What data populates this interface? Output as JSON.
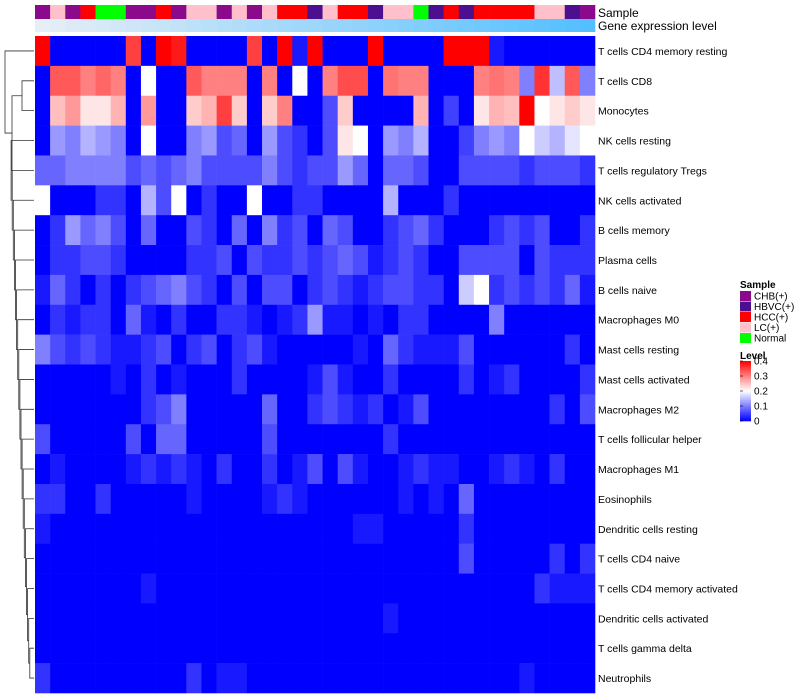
{
  "chart_data": {
    "type": "heatmap",
    "title": "",
    "annotation_tracks": [
      "Sample",
      "Gene expression level"
    ],
    "sample_palette": {
      "CHB(+)": "#8b0a8b",
      "HBVC(+)": "#4b0f8f",
      "HCC(+)": "#ff0000",
      "LC(+)": "#ffc0cb",
      "Normal": "#00ff00"
    },
    "sample_track": [
      "CHB(+)",
      "LC(+)",
      "CHB(+)",
      "HCC(+)",
      "Normal",
      "Normal",
      "CHB(+)",
      "CHB(+)",
      "HCC(+)",
      "CHB(+)",
      "LC(+)",
      "LC(+)",
      "CHB(+)",
      "LC(+)",
      "CHB(+)",
      "LC(+)",
      "HCC(+)",
      "HCC(+)",
      "HBVC(+)",
      "LC(+)",
      "HCC(+)",
      "HCC(+)",
      "HBVC(+)",
      "LC(+)",
      "LC(+)",
      "Normal",
      "HBVC(+)",
      "HCC(+)",
      "HBVC(+)",
      "HCC(+)",
      "HCC(+)",
      "HCC(+)",
      "HCC(+)",
      "LC(+)",
      "LC(+)",
      "HBVC(+)",
      "CHB(+)"
    ],
    "expression_track_ramp": [
      "#e6eef6",
      "#54bfff"
    ],
    "rows": [
      "T cells CD4 memory resting",
      "T cells CD8",
      "Monocytes",
      "NK cells resting",
      "T cells regulatory  Tregs",
      "NK cells activated",
      "B cells memory",
      "Plasma cells",
      "B cells naive",
      "Macrophages M0",
      "Mast cells resting",
      "Mast cells activated",
      "Macrophages M2",
      "T cells follicular helper",
      "Macrophages M1",
      "Eosinophils",
      "Dendritic cells resting",
      "T cells CD4 naive",
      "T cells CD4 memory activated",
      "Dendritic cells activated",
      "T cells gamma delta",
      "Neutrophils"
    ],
    "matrix": [
      [
        0.4,
        0.0,
        0.0,
        0.0,
        0.0,
        0.0,
        0.35,
        0.0,
        0.4,
        0.38,
        0.0,
        0.0,
        0.0,
        0.0,
        0.35,
        0.0,
        0.4,
        0.02,
        0.4,
        0.0,
        0.0,
        0.0,
        0.4,
        0.0,
        0.0,
        0.0,
        0.0,
        0.4,
        0.4,
        0.4,
        0.02,
        0.0,
        0.0,
        0.0,
        0.0,
        0.0,
        0.0
      ],
      [
        0.0,
        0.33,
        0.33,
        0.3,
        0.32,
        0.3,
        0.0,
        0.2,
        0.0,
        0.0,
        0.33,
        0.3,
        0.3,
        0.3,
        0.0,
        0.3,
        0.0,
        0.2,
        0.0,
        0.3,
        0.34,
        0.34,
        0.0,
        0.31,
        0.3,
        0.3,
        0.0,
        0.0,
        0.0,
        0.3,
        0.31,
        0.3,
        0.1,
        0.36,
        0.15,
        0.33,
        0.1
      ],
      [
        0.0,
        0.25,
        0.28,
        0.22,
        0.22,
        0.26,
        0.0,
        0.28,
        0.0,
        0.0,
        0.24,
        0.26,
        0.35,
        0.24,
        0.0,
        0.24,
        0.3,
        0.0,
        0.0,
        0.06,
        0.24,
        0.0,
        0.0,
        0.0,
        0.0,
        0.26,
        0.0,
        0.05,
        0.0,
        0.22,
        0.26,
        0.25,
        0.4,
        0.2,
        0.22,
        0.24,
        0.22
      ],
      [
        0.0,
        0.12,
        0.1,
        0.14,
        0.12,
        0.1,
        0.0,
        0.2,
        0.0,
        0.0,
        0.1,
        0.12,
        0.06,
        0.08,
        0.0,
        0.12,
        0.06,
        0.04,
        0.0,
        0.06,
        0.22,
        0.2,
        0.0,
        0.12,
        0.1,
        0.14,
        0.0,
        0.0,
        0.05,
        0.1,
        0.12,
        0.1,
        0.2,
        0.16,
        0.14,
        0.18,
        0.2
      ],
      [
        0.08,
        0.08,
        0.1,
        0.1,
        0.1,
        0.1,
        0.06,
        0.08,
        0.06,
        0.08,
        0.1,
        0.06,
        0.06,
        0.06,
        0.06,
        0.1,
        0.06,
        0.04,
        0.06,
        0.06,
        0.12,
        0.08,
        0.0,
        0.08,
        0.08,
        0.06,
        0.0,
        0.0,
        0.06,
        0.06,
        0.06,
        0.06,
        0.04,
        0.06,
        0.06,
        0.06,
        0.04
      ],
      [
        0.2,
        0.0,
        0.0,
        0.0,
        0.04,
        0.04,
        0.0,
        0.14,
        0.06,
        0.2,
        0.0,
        0.04,
        0.0,
        0.0,
        0.2,
        0.0,
        0.0,
        0.04,
        0.04,
        0.0,
        0.0,
        0.0,
        0.0,
        0.14,
        0.0,
        0.0,
        0.0,
        0.04,
        0.0,
        0.0,
        0.0,
        0.0,
        0.0,
        0.0,
        0.0,
        0.0,
        0.0
      ],
      [
        0.0,
        0.04,
        0.12,
        0.08,
        0.1,
        0.06,
        0.0,
        0.08,
        0.0,
        0.0,
        0.06,
        0.04,
        0.0,
        0.08,
        0.0,
        0.1,
        0.04,
        0.06,
        0.0,
        0.08,
        0.06,
        0.0,
        0.0,
        0.04,
        0.06,
        0.08,
        0.04,
        0.0,
        0.0,
        0.0,
        0.04,
        0.06,
        0.04,
        0.06,
        0.0,
        0.0,
        0.04
      ],
      [
        0.0,
        0.04,
        0.04,
        0.06,
        0.06,
        0.04,
        0.0,
        0.0,
        0.0,
        0.0,
        0.04,
        0.04,
        0.06,
        0.0,
        0.06,
        0.04,
        0.04,
        0.06,
        0.04,
        0.06,
        0.08,
        0.06,
        0.02,
        0.04,
        0.06,
        0.04,
        0.0,
        0.0,
        0.06,
        0.06,
        0.06,
        0.06,
        0.0,
        0.06,
        0.04,
        0.04,
        0.04
      ],
      [
        0.02,
        0.08,
        0.04,
        0.0,
        0.04,
        0.0,
        0.04,
        0.06,
        0.08,
        0.1,
        0.06,
        0.04,
        0.0,
        0.06,
        0.0,
        0.06,
        0.06,
        0.0,
        0.04,
        0.06,
        0.04,
        0.02,
        0.04,
        0.06,
        0.06,
        0.04,
        0.04,
        0.0,
        0.16,
        0.2,
        0.04,
        0.06,
        0.04,
        0.06,
        0.04,
        0.08,
        0.02
      ],
      [
        0.0,
        0.04,
        0.02,
        0.04,
        0.04,
        0.0,
        0.08,
        0.02,
        0.0,
        0.04,
        0.0,
        0.0,
        0.04,
        0.04,
        0.02,
        0.0,
        0.02,
        0.04,
        0.12,
        0.02,
        0.02,
        0.0,
        0.02,
        0.0,
        0.04,
        0.04,
        0.0,
        0.0,
        0.0,
        0.0,
        0.1,
        0.0,
        0.0,
        0.0,
        0.0,
        0.0,
        0.0
      ],
      [
        0.1,
        0.06,
        0.04,
        0.06,
        0.04,
        0.02,
        0.02,
        0.04,
        0.06,
        0.0,
        0.04,
        0.06,
        0.0,
        0.04,
        0.06,
        0.02,
        0.0,
        0.0,
        0.0,
        0.0,
        0.0,
        0.02,
        0.0,
        0.08,
        0.04,
        0.02,
        0.02,
        0.02,
        0.06,
        0.0,
        0.0,
        0.0,
        0.0,
        0.0,
        0.0,
        0.04,
        0.0
      ],
      [
        0.0,
        0.0,
        0.0,
        0.0,
        0.0,
        0.02,
        0.0,
        0.04,
        0.0,
        0.02,
        0.0,
        0.0,
        0.0,
        0.04,
        0.0,
        0.0,
        0.0,
        0.0,
        0.02,
        0.06,
        0.02,
        0.0,
        0.0,
        0.04,
        0.0,
        0.0,
        0.0,
        0.0,
        0.04,
        0.0,
        0.02,
        0.04,
        0.0,
        0.0,
        0.0,
        0.0,
        0.04
      ],
      [
        0.0,
        0.0,
        0.0,
        0.0,
        0.0,
        0.0,
        0.0,
        0.04,
        0.06,
        0.1,
        0.0,
        0.0,
        0.0,
        0.0,
        0.0,
        0.08,
        0.0,
        0.0,
        0.04,
        0.06,
        0.04,
        0.02,
        0.04,
        0.0,
        0.02,
        0.06,
        0.0,
        0.0,
        0.0,
        0.0,
        0.0,
        0.0,
        0.0,
        0.0,
        0.04,
        0.0,
        0.06
      ],
      [
        0.06,
        0.0,
        0.0,
        0.0,
        0.0,
        0.0,
        0.06,
        0.0,
        0.08,
        0.08,
        0.0,
        0.0,
        0.0,
        0.0,
        0.0,
        0.06,
        0.0,
        0.0,
        0.0,
        0.0,
        0.0,
        0.0,
        0.0,
        0.04,
        0.0,
        0.0,
        0.0,
        0.0,
        0.0,
        0.0,
        0.0,
        0.0,
        0.0,
        0.0,
        0.0,
        0.0,
        0.0
      ],
      [
        0.0,
        0.02,
        0.0,
        0.0,
        0.0,
        0.0,
        0.02,
        0.04,
        0.02,
        0.04,
        0.02,
        0.0,
        0.04,
        0.0,
        0.0,
        0.04,
        0.0,
        0.02,
        0.06,
        0.0,
        0.06,
        0.02,
        0.0,
        0.0,
        0.02,
        0.04,
        0.02,
        0.02,
        0.0,
        0.0,
        0.02,
        0.04,
        0.02,
        0.0,
        0.04,
        0.0,
        0.0
      ],
      [
        0.04,
        0.04,
        0.0,
        0.0,
        0.04,
        0.0,
        0.0,
        0.0,
        0.0,
        0.0,
        0.02,
        0.0,
        0.0,
        0.0,
        0.0,
        0.02,
        0.04,
        0.02,
        0.0,
        0.0,
        0.0,
        0.0,
        0.0,
        0.0,
        0.02,
        0.0,
        0.02,
        0.0,
        0.08,
        0.0,
        0.0,
        0.0,
        0.0,
        0.0,
        0.0,
        0.0,
        0.0
      ],
      [
        0.02,
        0.0,
        0.0,
        0.0,
        0.0,
        0.0,
        0.0,
        0.0,
        0.0,
        0.0,
        0.0,
        0.0,
        0.0,
        0.0,
        0.0,
        0.0,
        0.0,
        0.0,
        0.0,
        0.0,
        0.0,
        0.02,
        0.02,
        0.0,
        0.0,
        0.0,
        0.0,
        0.0,
        0.04,
        0.0,
        0.0,
        0.0,
        0.0,
        0.0,
        0.0,
        0.0,
        0.0
      ],
      [
        0.0,
        0.0,
        0.0,
        0.0,
        0.0,
        0.0,
        0.0,
        0.0,
        0.0,
        0.0,
        0.0,
        0.0,
        0.0,
        0.0,
        0.0,
        0.0,
        0.0,
        0.0,
        0.0,
        0.0,
        0.0,
        0.0,
        0.0,
        0.0,
        0.0,
        0.0,
        0.0,
        0.0,
        0.06,
        0.0,
        0.0,
        0.0,
        0.0,
        0.0,
        0.04,
        0.0,
        0.04
      ],
      [
        0.0,
        0.0,
        0.0,
        0.0,
        0.0,
        0.0,
        0.0,
        0.02,
        0.0,
        0.0,
        0.0,
        0.0,
        0.0,
        0.0,
        0.0,
        0.0,
        0.0,
        0.0,
        0.0,
        0.0,
        0.0,
        0.0,
        0.0,
        0.0,
        0.0,
        0.0,
        0.0,
        0.0,
        0.0,
        0.0,
        0.0,
        0.0,
        0.0,
        0.04,
        0.02,
        0.02,
        0.02
      ],
      [
        0.0,
        0.0,
        0.0,
        0.0,
        0.0,
        0.0,
        0.0,
        0.0,
        0.0,
        0.0,
        0.0,
        0.0,
        0.0,
        0.0,
        0.0,
        0.0,
        0.0,
        0.0,
        0.0,
        0.0,
        0.0,
        0.0,
        0.0,
        0.02,
        0.0,
        0.0,
        0.0,
        0.0,
        0.0,
        0.0,
        0.0,
        0.0,
        0.0,
        0.0,
        0.0,
        0.0,
        0.0
      ],
      [
        0.0,
        0.0,
        0.0,
        0.0,
        0.0,
        0.0,
        0.0,
        0.0,
        0.0,
        0.0,
        0.0,
        0.0,
        0.0,
        0.0,
        0.0,
        0.0,
        0.0,
        0.0,
        0.0,
        0.0,
        0.0,
        0.0,
        0.0,
        0.0,
        0.0,
        0.0,
        0.0,
        0.0,
        0.0,
        0.0,
        0.0,
        0.0,
        0.0,
        0.0,
        0.0,
        0.0,
        0.0
      ],
      [
        0.04,
        0.0,
        0.0,
        0.0,
        0.0,
        0.0,
        0.0,
        0.0,
        0.0,
        0.0,
        0.04,
        0.0,
        0.02,
        0.02,
        0.0,
        0.0,
        0.0,
        0.0,
        0.0,
        0.0,
        0.0,
        0.0,
        0.0,
        0.0,
        0.0,
        0.0,
        0.0,
        0.0,
        0.0,
        0.0,
        0.0,
        0.0,
        0.02,
        0.0,
        0.0,
        0.0,
        0.0
      ]
    ],
    "color_scale": {
      "domain": [
        0,
        0.2,
        0.4
      ],
      "colors": [
        "#0000ff",
        "#ffffff",
        "#ff0000"
      ]
    },
    "legend": {
      "sample_title": "Sample",
      "level_title": "Level",
      "level_ticks": [
        "0.4",
        "0.3",
        "0.2",
        "0.1",
        "0"
      ],
      "level_tick_values": [
        0.4,
        0.3,
        0.2,
        0.1,
        0
      ],
      "position": "right"
    },
    "row_dendrogram": true
  }
}
